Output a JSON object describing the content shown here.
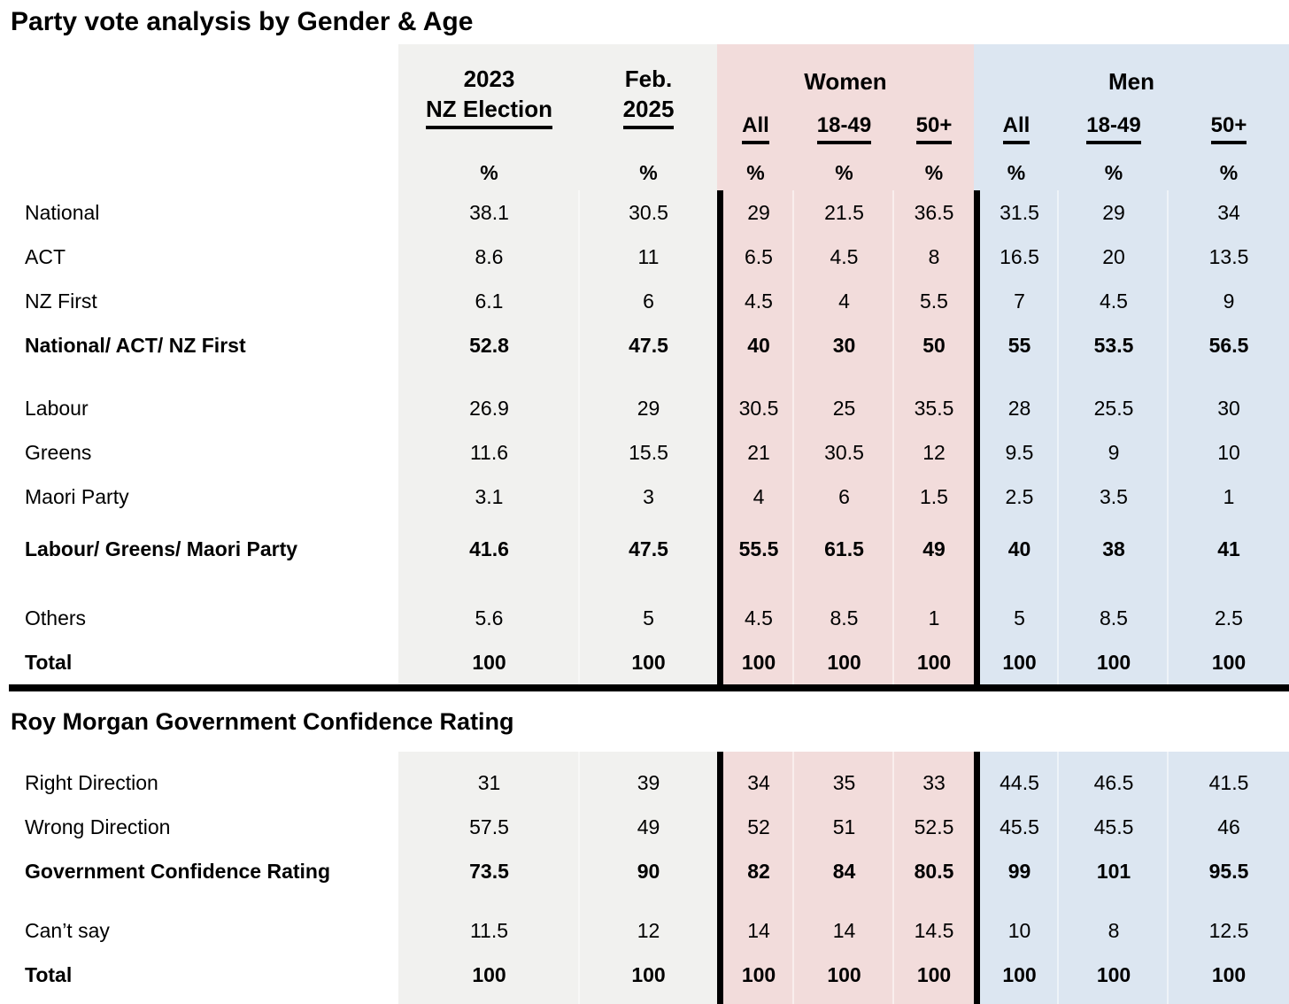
{
  "title": "Party vote analysis by Gender & Age",
  "colors": {
    "neutral_column_bg": "#f1f1ef",
    "women_column_bg": "#f2dcdb",
    "men_column_bg": "#dce6f1",
    "rule_color": "#000000"
  },
  "header": {
    "election_col": {
      "line1": "2023",
      "line2": "NZ Election"
    },
    "feb_col": {
      "line1": "Feb.",
      "line2": "2025"
    },
    "women_label": "Women",
    "men_label": "Men",
    "subheaders": [
      "All",
      "18-49",
      "50+"
    ],
    "percent_sign": "%"
  },
  "party_table": {
    "rows": [
      {
        "label": "National",
        "bold": false,
        "values": [
          "38.1",
          "30.5",
          "29",
          "21.5",
          "36.5",
          "31.5",
          "29",
          "34"
        ]
      },
      {
        "label": "ACT",
        "bold": false,
        "values": [
          "8.6",
          "11",
          "6.5",
          "4.5",
          "8",
          "16.5",
          "20",
          "13.5"
        ]
      },
      {
        "label": "NZ First",
        "bold": false,
        "values": [
          "6.1",
          "6",
          "4.5",
          "4",
          "5.5",
          "7",
          "4.5",
          "9"
        ]
      },
      {
        "label": "National/ ACT/ NZ First",
        "bold": true,
        "values": [
          "52.8",
          "47.5",
          "40",
          "30",
          "50",
          "55",
          "53.5",
          "56.5"
        ]
      },
      {
        "spacer": true
      },
      {
        "label": "Labour",
        "bold": false,
        "values": [
          "26.9",
          "29",
          "30.5",
          "25",
          "35.5",
          "28",
          "25.5",
          "30"
        ]
      },
      {
        "label": "Greens",
        "bold": false,
        "values": [
          "11.6",
          "15.5",
          "21",
          "30.5",
          "12",
          "9.5",
          "9",
          "10"
        ]
      },
      {
        "label": "Maori Party",
        "bold": false,
        "values": [
          "3.1",
          "3",
          "4",
          "6",
          "1.5",
          "2.5",
          "3.5",
          "1"
        ]
      },
      {
        "spacer": true
      },
      {
        "label": "Labour/ Greens/ Maori Party",
        "bold": true,
        "values": [
          "41.6",
          "47.5",
          "55.5",
          "61.5",
          "49",
          "40",
          "38",
          "41"
        ]
      },
      {
        "spacer": true
      },
      {
        "label": "Others",
        "bold": false,
        "values": [
          "5.6",
          "5",
          "4.5",
          "8.5",
          "1",
          "5",
          "8.5",
          "2.5"
        ]
      },
      {
        "label": "Total",
        "bold": true,
        "values": [
          "100",
          "100",
          "100",
          "100",
          "100",
          "100",
          "100",
          "100"
        ]
      }
    ]
  },
  "confidence_table": {
    "title": "Roy Morgan Government Confidence Rating",
    "rows": [
      {
        "label": "Right Direction",
        "bold": false,
        "values": [
          "31",
          "39",
          "34",
          "35",
          "33",
          "44.5",
          "46.5",
          "41.5"
        ]
      },
      {
        "label": "Wrong Direction",
        "bold": false,
        "values": [
          "57.5",
          "49",
          "52",
          "51",
          "52.5",
          "45.5",
          "45.5",
          "46"
        ]
      },
      {
        "label": "Government Confidence Rating",
        "bold": true,
        "values": [
          "73.5",
          "90",
          "82",
          "84",
          "80.5",
          "99",
          "101",
          "95.5"
        ]
      },
      {
        "spacer": true
      },
      {
        "label": "Can’t say",
        "bold": false,
        "values": [
          "11.5",
          "12",
          "14",
          "14",
          "14.5",
          "10",
          "8",
          "12.5"
        ]
      },
      {
        "label": "Total",
        "bold": true,
        "values": [
          "100",
          "100",
          "100",
          "100",
          "100",
          "100",
          "100",
          "100"
        ]
      }
    ]
  }
}
